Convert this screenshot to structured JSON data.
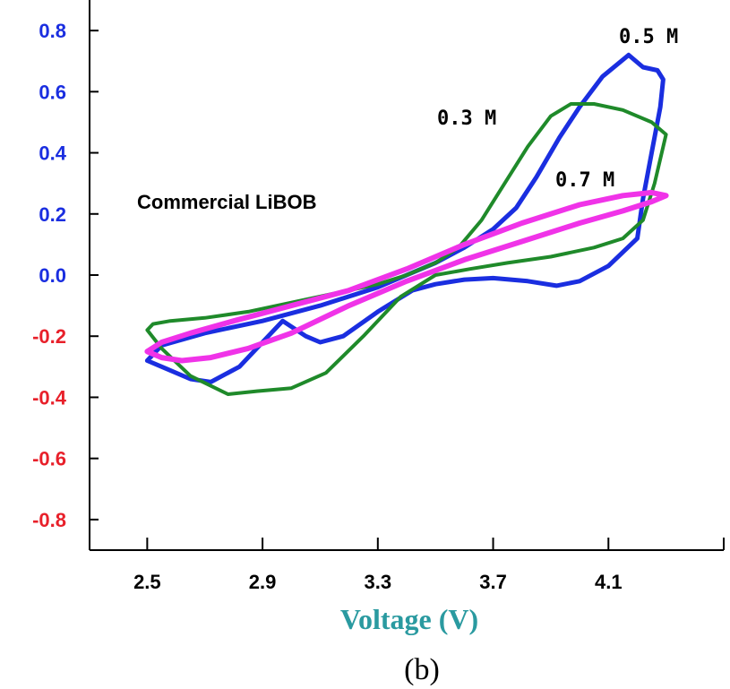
{
  "chart_data": {
    "type": "line",
    "title": "",
    "xlabel": "Voltage (V)",
    "ylabel": "",
    "xlim": [
      2.3,
      4.5
    ],
    "ylim": [
      -0.9,
      0.9
    ],
    "x_ticks": [
      "2.5",
      "2.9",
      "3.3",
      "3.7",
      "4.1"
    ],
    "x_tick_values": [
      2.5,
      2.9,
      3.3,
      3.7,
      4.1
    ],
    "y_ticks": [
      "0.8",
      "0.6",
      "0.4",
      "0.2",
      "0.0",
      "-0.2",
      "-0.4",
      "-0.6",
      "-0.8"
    ],
    "y_tick_values": [
      0.8,
      0.6,
      0.4,
      0.2,
      0.0,
      -0.2,
      -0.4,
      -0.6,
      -0.8
    ],
    "annotation": "Commercial LiBOB",
    "panel_label": "(b)",
    "grid": false,
    "series": [
      {
        "name": "0.5 M",
        "color": "#1a2ee0",
        "points": [
          [
            2.5,
            -0.28
          ],
          [
            2.55,
            -0.3
          ],
          [
            2.65,
            -0.34
          ],
          [
            2.72,
            -0.35
          ],
          [
            2.82,
            -0.3
          ],
          [
            2.92,
            -0.2
          ],
          [
            2.97,
            -0.15
          ],
          [
            3.05,
            -0.2
          ],
          [
            3.1,
            -0.22
          ],
          [
            3.18,
            -0.2
          ],
          [
            3.3,
            -0.12
          ],
          [
            3.42,
            -0.05
          ],
          [
            3.5,
            -0.03
          ],
          [
            3.6,
            -0.015
          ],
          [
            3.7,
            -0.01
          ],
          [
            3.82,
            -0.02
          ],
          [
            3.92,
            -0.035
          ],
          [
            4.0,
            -0.02
          ],
          [
            4.1,
            0.03
          ],
          [
            4.2,
            0.12
          ],
          [
            4.22,
            0.25
          ],
          [
            4.25,
            0.4
          ],
          [
            4.28,
            0.55
          ],
          [
            4.29,
            0.64
          ],
          [
            4.27,
            0.67
          ],
          [
            4.22,
            0.68
          ],
          [
            4.17,
            0.72
          ],
          [
            4.08,
            0.65
          ],
          [
            4.0,
            0.55
          ],
          [
            3.93,
            0.45
          ],
          [
            3.85,
            0.32
          ],
          [
            3.78,
            0.22
          ],
          [
            3.7,
            0.15
          ],
          [
            3.6,
            0.09
          ],
          [
            3.5,
            0.04
          ],
          [
            3.4,
            0.0
          ],
          [
            3.3,
            -0.04
          ],
          [
            3.1,
            -0.1
          ],
          [
            2.9,
            -0.15
          ],
          [
            2.7,
            -0.19
          ],
          [
            2.55,
            -0.23
          ],
          [
            2.5,
            -0.28
          ]
        ]
      },
      {
        "name": "0.3 M",
        "color": "#1f8a2a",
        "points": [
          [
            2.5,
            -0.18
          ],
          [
            2.55,
            -0.24
          ],
          [
            2.65,
            -0.33
          ],
          [
            2.78,
            -0.39
          ],
          [
            2.88,
            -0.38
          ],
          [
            3.0,
            -0.37
          ],
          [
            3.12,
            -0.32
          ],
          [
            3.25,
            -0.2
          ],
          [
            3.38,
            -0.07
          ],
          [
            3.5,
            0.0
          ],
          [
            3.62,
            0.02
          ],
          [
            3.75,
            0.04
          ],
          [
            3.9,
            0.06
          ],
          [
            4.05,
            0.09
          ],
          [
            4.15,
            0.12
          ],
          [
            4.22,
            0.18
          ],
          [
            4.26,
            0.3
          ],
          [
            4.3,
            0.46
          ],
          [
            4.25,
            0.5
          ],
          [
            4.15,
            0.54
          ],
          [
            4.05,
            0.56
          ],
          [
            3.97,
            0.56
          ],
          [
            3.9,
            0.52
          ],
          [
            3.82,
            0.42
          ],
          [
            3.74,
            0.3
          ],
          [
            3.66,
            0.18
          ],
          [
            3.58,
            0.09
          ],
          [
            3.5,
            0.04
          ],
          [
            3.4,
            0.0
          ],
          [
            3.3,
            -0.03
          ],
          [
            3.15,
            -0.06
          ],
          [
            3.0,
            -0.09
          ],
          [
            2.85,
            -0.12
          ],
          [
            2.7,
            -0.14
          ],
          [
            2.58,
            -0.15
          ],
          [
            2.52,
            -0.16
          ],
          [
            2.5,
            -0.18
          ]
        ]
      },
      {
        "name": "0.7 M",
        "color": "#f033e8",
        "points": [
          [
            2.5,
            -0.25
          ],
          [
            2.55,
            -0.27
          ],
          [
            2.62,
            -0.28
          ],
          [
            2.72,
            -0.27
          ],
          [
            2.85,
            -0.24
          ],
          [
            3.0,
            -0.19
          ],
          [
            3.2,
            -0.1
          ],
          [
            3.4,
            -0.02
          ],
          [
            3.6,
            0.05
          ],
          [
            3.8,
            0.11
          ],
          [
            4.0,
            0.17
          ],
          [
            4.15,
            0.21
          ],
          [
            4.25,
            0.24
          ],
          [
            4.3,
            0.26
          ],
          [
            4.25,
            0.27
          ],
          [
            4.15,
            0.26
          ],
          [
            4.0,
            0.23
          ],
          [
            3.8,
            0.17
          ],
          [
            3.6,
            0.1
          ],
          [
            3.4,
            0.02
          ],
          [
            3.2,
            -0.05
          ],
          [
            3.0,
            -0.1
          ],
          [
            2.8,
            -0.15
          ],
          [
            2.65,
            -0.19
          ],
          [
            2.55,
            -0.22
          ],
          [
            2.5,
            -0.25
          ]
        ]
      }
    ]
  }
}
